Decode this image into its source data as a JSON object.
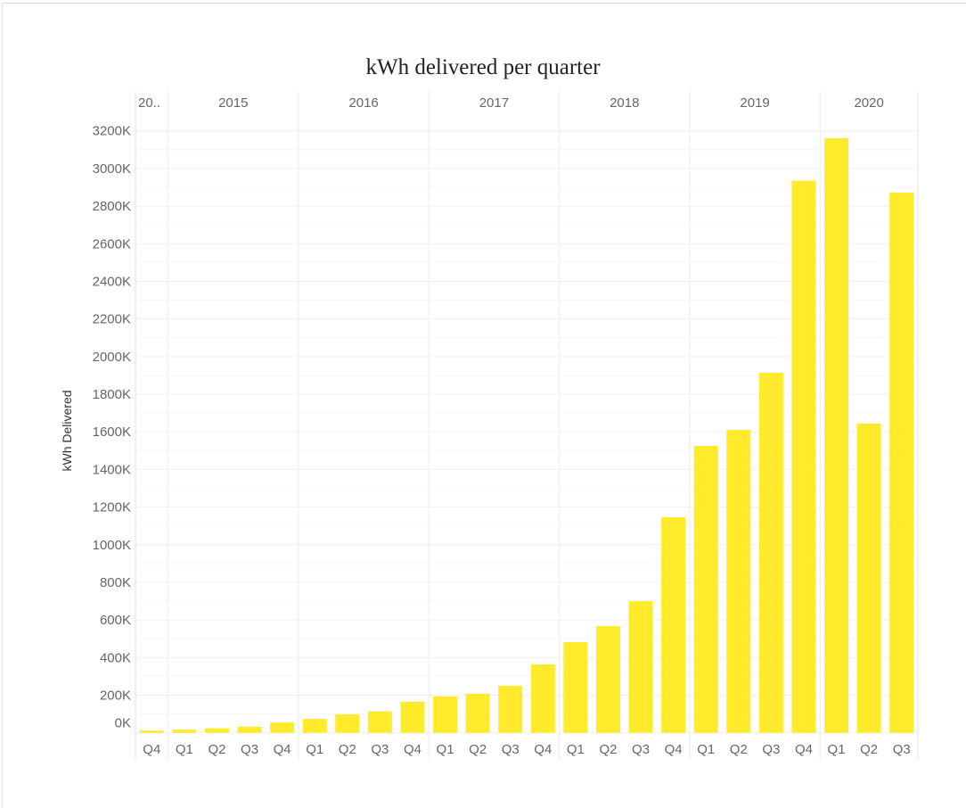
{
  "chart_data": {
    "type": "bar",
    "title": "kWh delivered per quarter",
    "xlabel": "",
    "ylabel": "kWh Delivered",
    "ylim": [
      0,
      3200
    ],
    "yunit": "K",
    "yticks": [
      "0K",
      "200K",
      "400K",
      "600K",
      "800K",
      "1000K",
      "1200K",
      "1400K",
      "1600K",
      "1800K",
      "2000K",
      "2200K",
      "2400K",
      "2600K",
      "2800K",
      "3000K",
      "3200K"
    ],
    "grid": true,
    "bar_color": "#FFEB2B",
    "years": [
      {
        "label": "20..",
        "quarters": [
          "Q4"
        ]
      },
      {
        "label": "2015",
        "quarters": [
          "Q1",
          "Q2",
          "Q3",
          "Q4"
        ]
      },
      {
        "label": "2016",
        "quarters": [
          "Q1",
          "Q2",
          "Q3",
          "Q4"
        ]
      },
      {
        "label": "2017",
        "quarters": [
          "Q1",
          "Q2",
          "Q3",
          "Q4"
        ]
      },
      {
        "label": "2018",
        "quarters": [
          "Q1",
          "Q2",
          "Q3",
          "Q4"
        ]
      },
      {
        "label": "2019",
        "quarters": [
          "Q1",
          "Q2",
          "Q3",
          "Q4"
        ]
      },
      {
        "label": "2020",
        "quarters": [
          "Q1",
          "Q2",
          "Q3"
        ]
      }
    ],
    "values": [
      12,
      17,
      24,
      33,
      55,
      74,
      98,
      114,
      165,
      194,
      208,
      250,
      364,
      482,
      567,
      700,
      1146,
      1525,
      1610,
      1914,
      2935,
      3161,
      1644,
      2872
    ]
  }
}
